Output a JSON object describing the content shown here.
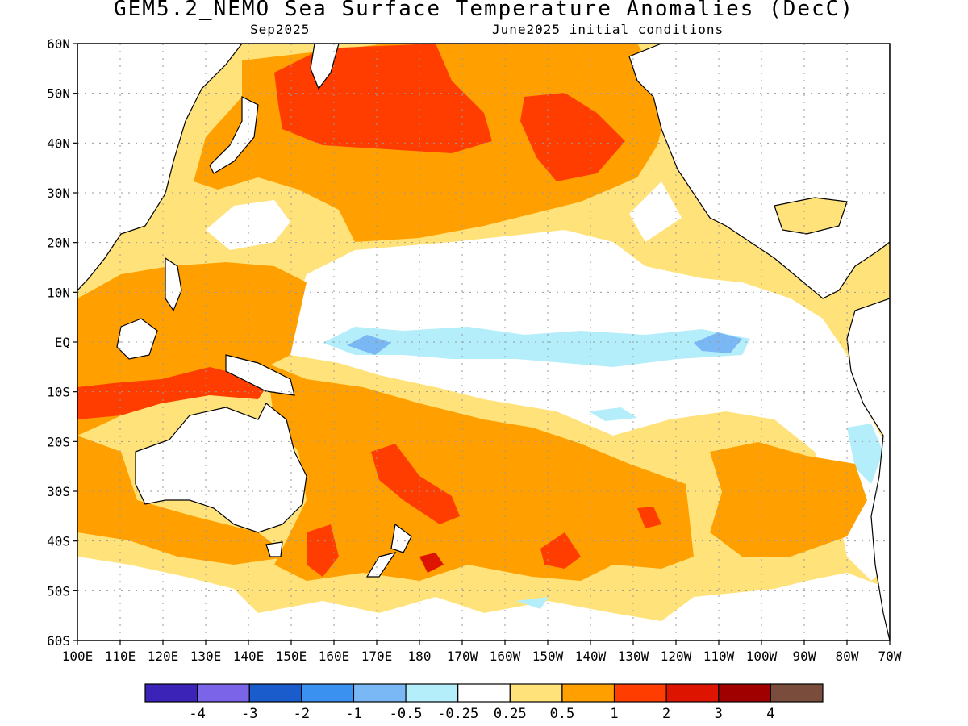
{
  "title": "GEM5.2_NEMO Sea Surface Temperature Anomalies (DecC)",
  "subtitle_left": "Sep2025",
  "subtitle_right": "June2025 initial conditions",
  "lat_labels": [
    "60N",
    "50N",
    "40N",
    "30N",
    "20N",
    "10N",
    "EQ",
    "10S",
    "20S",
    "30S",
    "40S",
    "50S",
    "60S"
  ],
  "lon_labels": [
    "100E",
    "110E",
    "120E",
    "130E",
    "140E",
    "150E",
    "160E",
    "170E",
    "180",
    "170W",
    "160W",
    "150W",
    "140W",
    "130W",
    "120W",
    "110W",
    "100W",
    "90W",
    "80W",
    "70W"
  ],
  "colorbar": {
    "colors": [
      "#3b23b7",
      "#7c64e8",
      "#1a5ccc",
      "#3b91f0",
      "#7ab7f5",
      "#b4eefa",
      "#ffffff",
      "#ffe37a",
      "#ffa000",
      "#ff3d00",
      "#dd1500",
      "#a00000",
      "#7a4c3c"
    ],
    "labels": [
      "-4",
      "-3",
      "-2",
      "-1",
      "-0.5",
      "-0.25",
      "0.25",
      "0.5",
      "1",
      "2",
      "3",
      "4"
    ]
  },
  "colors": {
    "land": "#ffffff",
    "coast": "#000000",
    "grid": "#9a9a9a"
  }
}
